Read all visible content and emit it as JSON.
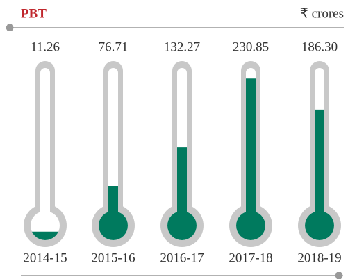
{
  "chart_data": {
    "type": "thermometer",
    "title": "PBT",
    "unit_label": "₹ crores",
    "categories": [
      "2014-15",
      "2015-16",
      "2016-17",
      "2017-18",
      "2018-19"
    ],
    "values": [
      11.26,
      76.71,
      132.27,
      230.85,
      186.3
    ],
    "value_labels": [
      "11.26",
      "76.71",
      "132.27",
      "230.85",
      "186.30"
    ],
    "color": "#007a5e",
    "ylim": [
      0,
      240
    ]
  }
}
